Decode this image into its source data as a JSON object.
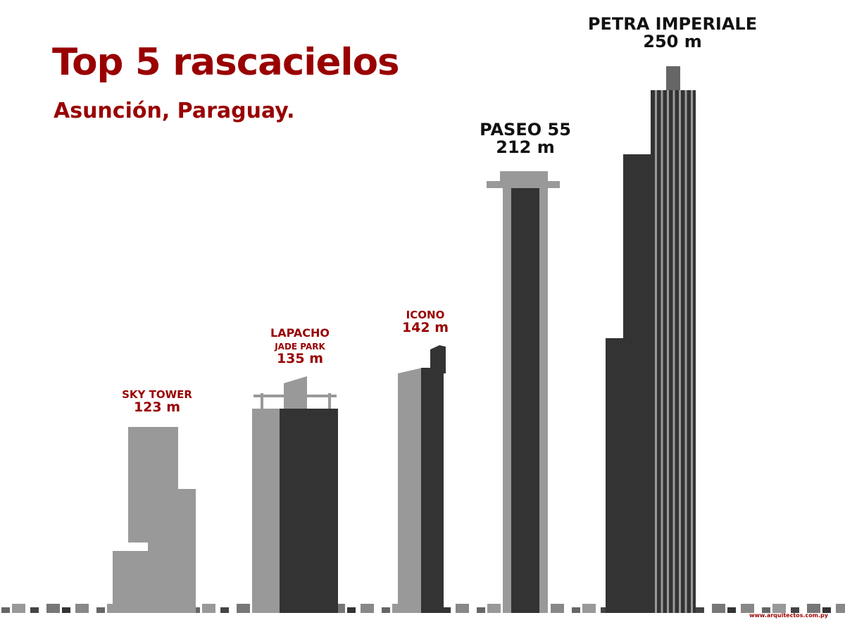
{
  "header": {
    "title": "Top 5 rascacielos",
    "subtitle": "Asunción, Paraguay."
  },
  "chart_data": {
    "type": "bar",
    "title": "Top 5 rascacielos",
    "subtitle": "Asunción, Paraguay.",
    "unit": "m",
    "categories": [
      "SKY TOWER",
      "LAPACHO JADE PARK",
      "ICONO",
      "PASEO 55",
      "PETRA IMPERIALE"
    ],
    "values": [
      123,
      135,
      142,
      212,
      250
    ],
    "labels": [
      {
        "name": "SKY TOWER",
        "name_sub": "",
        "height": "123 m"
      },
      {
        "name": "LAPACHO",
        "name_sub": "JADE PARK",
        "height": "135 m"
      },
      {
        "name": "ICONO",
        "name_sub": "",
        "height": "142 m"
      },
      {
        "name": "PASEO 55",
        "name_sub": "",
        "height": "212 m"
      },
      {
        "name": "PETRA IMPERIALE",
        "name_sub": "",
        "height": "250 m"
      }
    ],
    "grid": false,
    "legend": "none"
  },
  "colors": {
    "accent": "#990000",
    "dark": "#333333",
    "light": "#999999",
    "mid": "#666666"
  },
  "footer": {
    "credit": "www.arquitectos.com.py"
  }
}
